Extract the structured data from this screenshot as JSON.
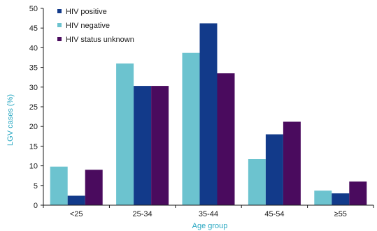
{
  "chart_data": {
    "type": "bar",
    "xlabel": "Age group",
    "ylabel": "LGV cases (%)",
    "categories": [
      "<25",
      "25-34",
      "35-44",
      "45-54",
      "≥55"
    ],
    "ylim": [
      0,
      50
    ],
    "yticks": [
      0,
      5,
      10,
      15,
      20,
      25,
      30,
      35,
      40,
      45,
      50
    ],
    "grid": false,
    "legend_position": "top-left",
    "series": [
      {
        "name": "HIV negative",
        "color": "#6cc3cf",
        "values": [
          9.8,
          36,
          38.7,
          11.7,
          3.7
        ]
      },
      {
        "name": "HIV positive",
        "color": "#123a8a",
        "values": [
          2.4,
          30.3,
          46.2,
          18,
          3
        ]
      },
      {
        "name": "HIV status unknown",
        "color": "#4a0b5e",
        "values": [
          9,
          30.3,
          33.5,
          21.2,
          6
        ]
      }
    ],
    "legend_order": [
      1,
      0,
      2
    ],
    "axis_title_color": "#2aa8c2"
  }
}
